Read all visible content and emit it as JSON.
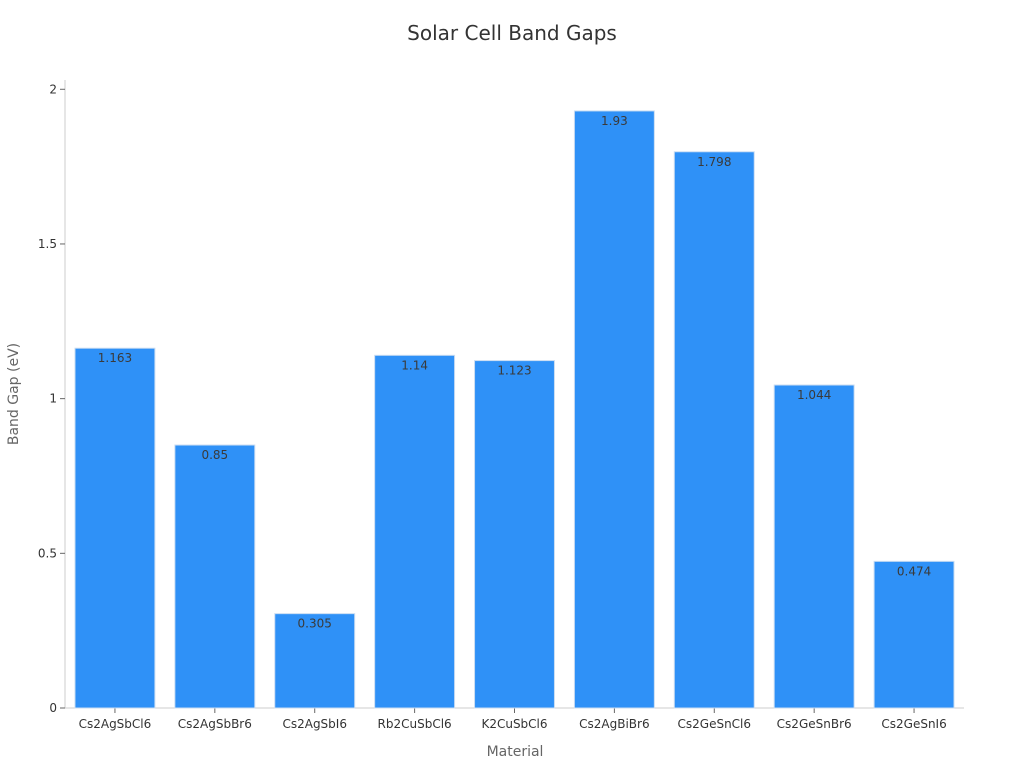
{
  "chart_data": {
    "type": "bar",
    "title": "Solar Cell Band Gaps",
    "xlabel": "Material",
    "ylabel": "Band Gap (eV)",
    "categories": [
      "Cs2AgSbCl6",
      "Cs2AgSbBr6",
      "Cs2AgSbI6",
      "Rb2CuSbCl6",
      "K2CuSbCl6",
      "Cs2AgBiBr6",
      "Cs2GeSnCl6",
      "Cs2GeSnBr6",
      "Cs2GeSnI6"
    ],
    "values": [
      1.163,
      0.85,
      0.305,
      1.14,
      1.123,
      1.93,
      1.798,
      1.044,
      0.474
    ],
    "value_labels": [
      "1.163",
      "0.85",
      "0.305",
      "1.14",
      "1.123",
      "1.93",
      "1.798",
      "1.044",
      "0.474"
    ],
    "ylim": [
      0,
      2.03
    ],
    "yticks": [
      0,
      0.5,
      1,
      1.5,
      2
    ],
    "ytick_labels": [
      "0",
      "0.5",
      "1",
      "1.5",
      "2"
    ],
    "grid": false,
    "legend": "none",
    "colors": {
      "bar": "#2f91f7",
      "bar_edge": "#c9dcf2",
      "axis": "#cccccc"
    }
  }
}
